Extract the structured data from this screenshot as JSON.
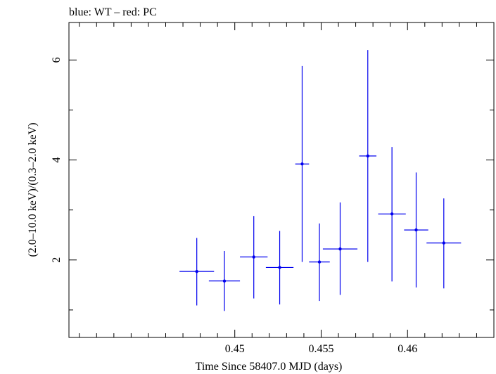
{
  "chart_data": {
    "type": "scatter",
    "title": "blue: WT – red: PC",
    "xlabel": "Time Since 58407.0 MJD (days)",
    "ylabel": "(2.0–10.0 keV)/(0.3–2.0 keV)",
    "xlim": [
      0.4404,
      0.465
    ],
    "ylim": [
      0.45,
      6.75
    ],
    "xticks": [
      {
        "value": 0.45,
        "label": "0.45"
      },
      {
        "value": 0.455,
        "label": "0.455"
      },
      {
        "value": 0.46,
        "label": "0.46"
      }
    ],
    "yticks": [
      {
        "value": 2,
        "label": "2"
      },
      {
        "value": 4,
        "label": "4"
      },
      {
        "value": 6,
        "label": "6"
      }
    ],
    "grid": false,
    "series": [
      {
        "color": "#0000ee",
        "points": [
          {
            "x": 0.4478,
            "xerr": 0.001,
            "y": 1.77,
            "ylo": 1.09,
            "yhi": 2.44
          },
          {
            "x": 0.4494,
            "xerr": 0.0009,
            "y": 1.58,
            "ylo": 0.98,
            "yhi": 2.18
          },
          {
            "x": 0.4511,
            "xerr": 0.0008,
            "y": 2.06,
            "ylo": 1.23,
            "yhi": 2.88
          },
          {
            "x": 0.4526,
            "xerr": 0.0008,
            "y": 1.85,
            "ylo": 1.11,
            "yhi": 2.58
          },
          {
            "x": 0.4539,
            "xerr": 0.0004,
            "y": 3.92,
            "ylo": 1.96,
            "yhi": 5.88
          },
          {
            "x": 0.4549,
            "xerr": 0.0006,
            "y": 1.96,
            "ylo": 1.18,
            "yhi": 2.73
          },
          {
            "x": 0.4561,
            "xerr": 0.001,
            "y": 2.22,
            "ylo": 1.3,
            "yhi": 3.15
          },
          {
            "x": 0.4577,
            "xerr": 0.0005,
            "y": 4.08,
            "ylo": 1.96,
            "yhi": 6.2
          },
          {
            "x": 0.4591,
            "xerr": 0.0008,
            "y": 2.92,
            "ylo": 1.57,
            "yhi": 4.26
          },
          {
            "x": 0.4605,
            "xerr": 0.0007,
            "y": 2.6,
            "ylo": 1.45,
            "yhi": 3.75
          },
          {
            "x": 0.4621,
            "xerr": 0.001,
            "y": 2.34,
            "ylo": 1.43,
            "yhi": 3.23
          }
        ]
      }
    ]
  }
}
